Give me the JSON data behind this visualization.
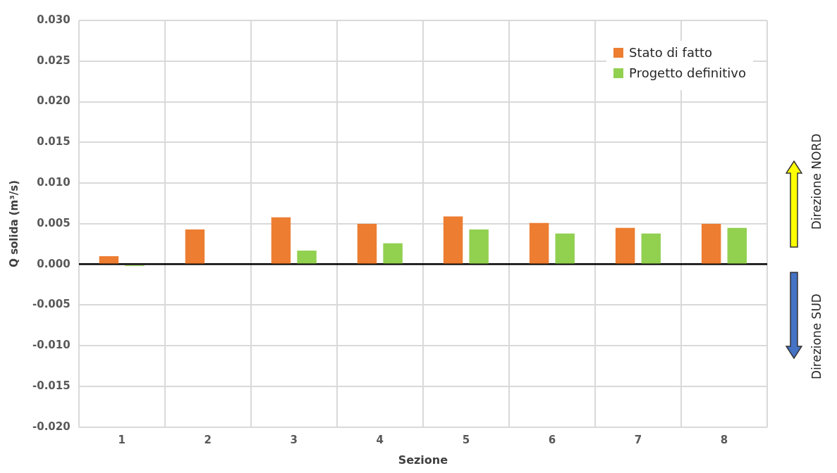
{
  "chart_data": {
    "type": "bar",
    "xlabel": "Sezione",
    "ylabel": "Q solida (m³/s)",
    "categories": [
      "1",
      "2",
      "3",
      "4",
      "5",
      "6",
      "7",
      "8"
    ],
    "series": [
      {
        "name": "Stato di fatto",
        "color": "#ed7d31",
        "values": [
          0.001,
          0.0043,
          0.0058,
          0.005,
          0.0059,
          0.0051,
          0.0045,
          0.005
        ]
      },
      {
        "name": "Progetto definitivo",
        "color": "#92d050",
        "values": [
          -0.0002,
          null,
          0.0017,
          0.0026,
          0.0043,
          0.0038,
          0.0038,
          0.0045
        ]
      }
    ],
    "ylim": [
      -0.02,
      0.03
    ],
    "yticks": [
      {
        "value": -0.02,
        "label": "-0.020"
      },
      {
        "value": -0.015,
        "label": "-0.015"
      },
      {
        "value": -0.01,
        "label": "-0.010"
      },
      {
        "value": -0.005,
        "label": "-0.005"
      },
      {
        "value": 0,
        "label": "0.000"
      },
      {
        "value": 0.005,
        "label": "0.005"
      },
      {
        "value": 0.01,
        "label": "0.010"
      },
      {
        "value": 0.015,
        "label": "0.015"
      },
      {
        "value": 0.02,
        "label": "0.020"
      },
      {
        "value": 0.025,
        "label": "0.025"
      },
      {
        "value": 0.03,
        "label": "0.030"
      }
    ],
    "grid": true,
    "legend": "top right",
    "annotations": [
      "Direzione NORD",
      "Direzione SUD"
    ]
  }
}
